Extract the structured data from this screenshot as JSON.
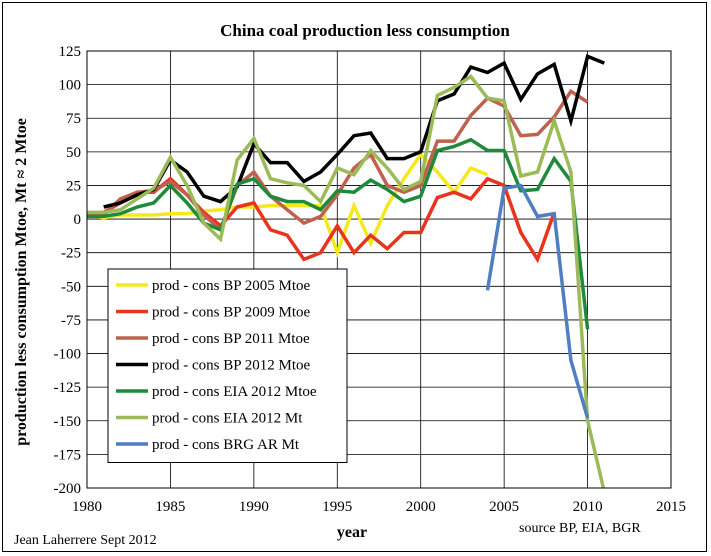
{
  "chart_data": {
    "type": "line",
    "title": "China coal production less consumption",
    "xlabel": "year",
    "ylabel": "production less consumption Mtoe, Mt ≈ 2 Mtoe",
    "xlim": [
      1980,
      2015
    ],
    "ylim": [
      -200,
      125
    ],
    "x_ticks": [
      "1980",
      "1985",
      "1990",
      "1995",
      "2000",
      "2005",
      "2010",
      "2015"
    ],
    "y_ticks": [
      "125",
      "100",
      "75",
      "50",
      "25",
      "0",
      "-25",
      "-50",
      "-75",
      "-100",
      "-125",
      "-150",
      "-175",
      "-200"
    ],
    "grid": true,
    "legend_position": "bottom-left inside plot",
    "series": [
      {
        "name": "prod - cons BP 2005 Mtoe",
        "color": "#f5e81f",
        "x": [
          1980,
          1981,
          1982,
          1983,
          1984,
          1985,
          1986,
          1987,
          1988,
          1989,
          1990,
          1991,
          1992,
          1993,
          1994,
          1995,
          1996,
          1997,
          1998,
          1999,
          2000,
          2001,
          2002,
          2003,
          2004
        ],
        "y": [
          3,
          1,
          3,
          3,
          3,
          4,
          4,
          6,
          7,
          9,
          9,
          10,
          10,
          10,
          10,
          -25,
          10,
          -18,
          10,
          30,
          48,
          35,
          20,
          38,
          33
        ]
      },
      {
        "name": "prod - cons BP 2009 Mtoe",
        "color": "#e8341c",
        "x": [
          1980,
          1981,
          1982,
          1983,
          1984,
          1985,
          1986,
          1987,
          1988,
          1989,
          1990,
          1991,
          1992,
          1993,
          1994,
          1995,
          1996,
          1997,
          1998,
          1999,
          2000,
          2001,
          2002,
          2003,
          2004,
          2005,
          2006,
          2007,
          2008
        ],
        "y": [
          4,
          5,
          12,
          20,
          20,
          30,
          18,
          5,
          -5,
          9,
          12,
          -8,
          -12,
          -30,
          -25,
          -5,
          -25,
          -12,
          -22,
          -10,
          -10,
          16,
          20,
          15,
          30,
          25,
          -10,
          -30,
          5
        ]
      },
      {
        "name": "prod - cons BP 2011 Mtoe",
        "color": "#c0604f",
        "x": [
          1980,
          1981,
          1982,
          1983,
          1984,
          1985,
          1986,
          1987,
          1988,
          1989,
          1990,
          1991,
          1992,
          1993,
          1994,
          1995,
          1996,
          1997,
          1998,
          1999,
          2000,
          2001,
          2002,
          2003,
          2004,
          2005,
          2006,
          2007,
          2008,
          2009,
          2010
        ],
        "y": [
          3,
          3,
          15,
          20,
          21,
          28,
          18,
          3,
          -8,
          25,
          35,
          17,
          7,
          -3,
          2,
          18,
          38,
          48,
          25,
          20,
          25,
          58,
          58,
          77,
          90,
          84,
          62,
          63,
          76,
          95,
          87
        ]
      },
      {
        "name": "prod - cons BP 2012 Mtoe",
        "color": "#000000",
        "x": [
          1981,
          1982,
          1983,
          1984,
          1985,
          1986,
          1987,
          1988,
          1989,
          1990,
          1991,
          1992,
          1993,
          1994,
          1995,
          1996,
          1997,
          1998,
          1999,
          2000,
          2001,
          2002,
          2003,
          2004,
          2005,
          2006,
          2007,
          2008,
          2009,
          2010,
          2011
        ],
        "y": [
          9,
          12,
          18,
          22,
          44,
          35,
          17,
          13,
          24,
          56,
          42,
          42,
          28,
          35,
          48,
          62,
          64,
          45,
          45,
          50,
          88,
          93,
          113,
          109,
          116,
          89,
          108,
          115,
          73,
          121,
          116
        ]
      },
      {
        "name": "prod - cons EIA 2012 Mtoe",
        "color": "#1f8a3a",
        "x": [
          1980,
          1981,
          1982,
          1983,
          1984,
          1985,
          1986,
          1987,
          1988,
          1989,
          1990,
          1991,
          1992,
          1993,
          1994,
          1995,
          1996,
          1997,
          1998,
          1999,
          2000,
          2001,
          2002,
          2003,
          2004,
          2005,
          2006,
          2007,
          2008,
          2009,
          2010
        ],
        "y": [
          2,
          2,
          4,
          9,
          12,
          25,
          12,
          -3,
          -8,
          26,
          30,
          17,
          13,
          13,
          7,
          21,
          20,
          29,
          22,
          13,
          17,
          51,
          54,
          59,
          51,
          51,
          21,
          22,
          45,
          28,
          -82
        ]
      },
      {
        "name": "prod - cons EIA 2012 Mt",
        "color": "#9bbb59",
        "x": [
          1980,
          1981,
          1982,
          1983,
          1984,
          1985,
          1986,
          1987,
          1988,
          1989,
          1990,
          1991,
          1992,
          1993,
          1994,
          1995,
          1996,
          1997,
          1998,
          1999,
          2000,
          2001,
          2002,
          2003,
          2004,
          2005,
          2006,
          2007,
          2008,
          2009,
          2010,
          2011
        ],
        "y": [
          5,
          5,
          7,
          15,
          23,
          46,
          25,
          -3,
          -15,
          44,
          60,
          30,
          27,
          25,
          13,
          38,
          33,
          51,
          38,
          22,
          28,
          92,
          98,
          106,
          90,
          88,
          32,
          35,
          73,
          35,
          -150,
          -203
        ]
      },
      {
        "name": "prod - cons BRG AR Mt",
        "color": "#4f7ec2",
        "x": [
          2004,
          2005,
          2006,
          2007,
          2008,
          2009,
          2010
        ],
        "y": [
          -53,
          23,
          25,
          2,
          4,
          -105,
          -148
        ]
      }
    ],
    "annotations": [
      "Jean Laherrere Sept 2012",
      "source BP, EIA, BGR"
    ]
  }
}
